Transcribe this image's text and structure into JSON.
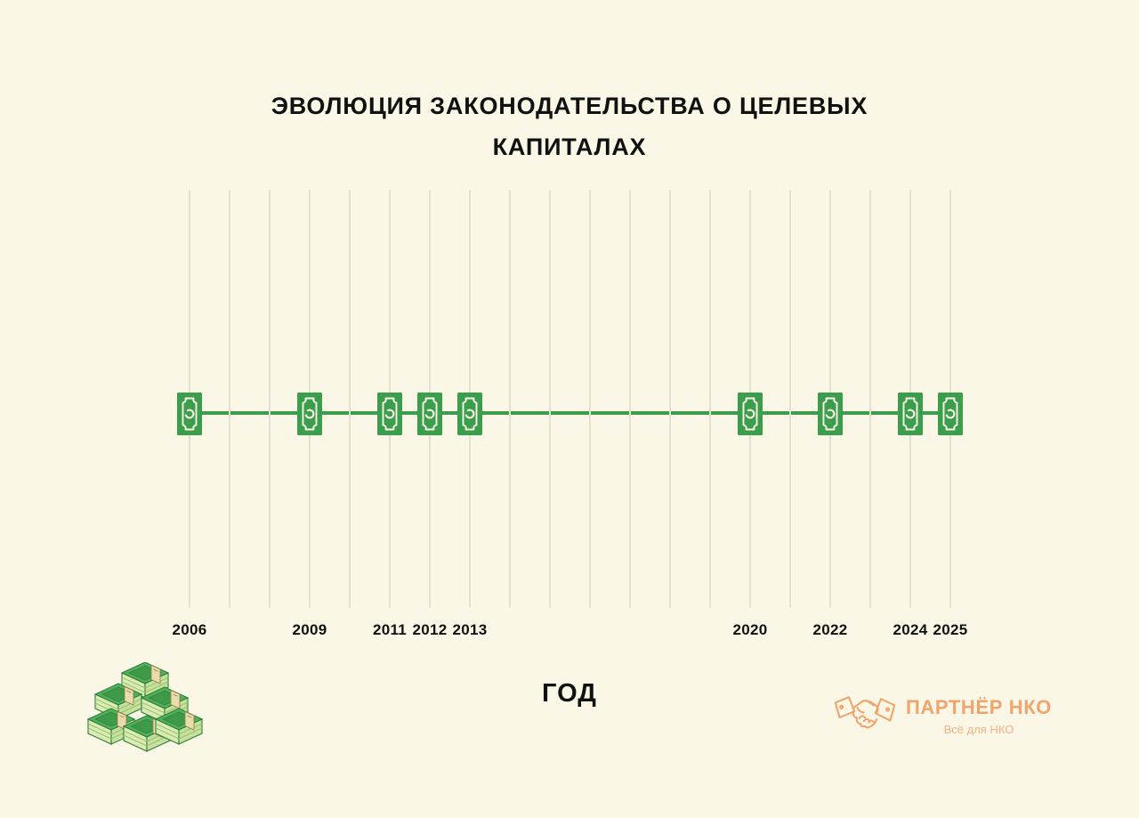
{
  "chart_data": {
    "type": "scatter",
    "title": "ЭВОЛЮЦИЯ ЗАКОНОДАТЕЛЬСТВА О ЦЕЛЕВЫХ КАПИТАЛАХ",
    "xlabel": "ГОД",
    "ylabel": "",
    "x": [
      2006,
      2009,
      2011,
      2012,
      2013,
      2020,
      2022,
      2024,
      2025
    ],
    "y": [
      0,
      0,
      0,
      0,
      0,
      0,
      0,
      0,
      0
    ],
    "x_tick_labels": [
      "2006",
      "2009",
      "2011",
      "2012",
      "2013",
      "2020",
      "2022",
      "2024",
      "2025"
    ],
    "xlim": [
      2006,
      2025
    ],
    "grid": "vertical line for every year from 2006 to 2025",
    "legend": null,
    "marker": "banknote-icon",
    "series_description": "Single event timeline: each marked year is an event (banknote icon) on a horizontal green line"
  },
  "branding": {
    "name": "ПАРТНЁР НКО",
    "tagline": "Всё для НКО",
    "logo_icon": "handshake-icon"
  },
  "decorations": {
    "bottom_left": "money-stack-illustration"
  },
  "colors": {
    "background": "#FBF7E6",
    "accent_green": "#3B9E4D",
    "gridline": "#E5E1D2",
    "text": "#111111",
    "brand_orange": "#F0A56D",
    "brand_orange_light": "#F3B285"
  }
}
